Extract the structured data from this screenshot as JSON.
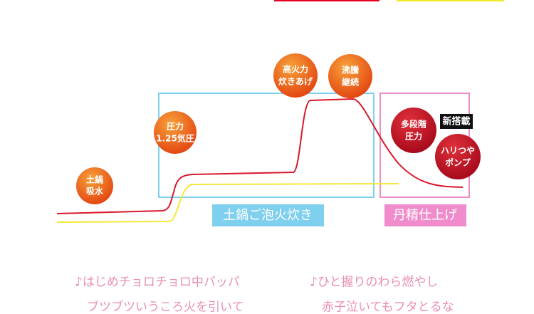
{
  "nodes": [
    {
      "lines": [
        "土鍋",
        "吸水"
      ]
    },
    {
      "lines": [
        "圧力",
        "1.25気圧"
      ]
    },
    {
      "lines": [
        "高火力",
        "炊きあげ"
      ]
    },
    {
      "lines": [
        "沸騰",
        "継続"
      ]
    },
    {
      "lines": [
        "多段階",
        "圧力"
      ]
    },
    {
      "lines": [
        "ハリつや",
        "ポンプ"
      ]
    }
  ],
  "badge": "新搭載",
  "phases": [
    "土鍋ご泡火炊き",
    "丹精仕上げ"
  ],
  "lyrics": [
    [
      "♪はじめチョロチョロ中パッパ",
      "ブツブツいうころ火を引いて"
    ],
    [
      "♪ひと握りのわら燃やし",
      "赤子泣いてもフタとるな"
    ]
  ]
}
